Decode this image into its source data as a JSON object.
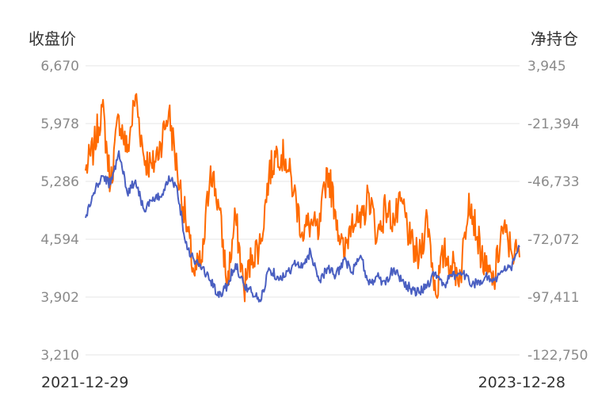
{
  "chart_data": {
    "type": "line",
    "left_axis_title": "收盘价",
    "right_axis_title": "净持仓",
    "left_ticks": [
      "6,670",
      "5,978",
      "5,286",
      "4,594",
      "3,902",
      "3,210"
    ],
    "right_ticks": [
      "3,945",
      "-21,394",
      "-46,733",
      "-72,072",
      "-97,411",
      "-122,750"
    ],
    "ylim_left": [
      3210,
      6670
    ],
    "ylim_right": [
      -122750,
      3945
    ],
    "x_range": [
      "2021-12-29",
      "2023-12-28"
    ],
    "x_tick_labels": [
      "2021-12-29",
      "2023-12-28"
    ],
    "grid": "horizontal",
    "colors": {
      "close": "#4a5fc1",
      "net_position": "#ff6a00",
      "grid": "#e6e6e6"
    },
    "series": [
      {
        "axis": "left",
        "x": [
          "2021-12-29",
          "2022-01-12",
          "2022-01-26",
          "2022-02-09",
          "2022-02-23",
          "2022-03-09",
          "2022-03-23",
          "2022-04-06",
          "2022-04-20",
          "2022-05-04",
          "2022-05-18",
          "2022-06-01",
          "2022-06-15",
          "2022-06-29",
          "2022-07-13",
          "2022-07-27",
          "2022-08-10",
          "2022-08-24",
          "2022-09-07",
          "2022-09-21",
          "2022-10-05",
          "2022-10-19",
          "2022-11-02",
          "2022-11-16",
          "2022-11-30",
          "2022-12-14",
          "2022-12-28",
          "2023-01-11",
          "2023-01-25",
          "2023-02-08",
          "2023-02-22",
          "2023-03-08",
          "2023-03-22",
          "2023-04-05",
          "2023-04-19",
          "2023-05-03",
          "2023-05-17",
          "2023-05-31",
          "2023-06-14",
          "2023-06-28",
          "2023-07-12",
          "2023-07-26",
          "2023-08-09",
          "2023-08-23",
          "2023-09-06",
          "2023-09-20",
          "2023-10-04",
          "2023-10-18",
          "2023-11-01",
          "2023-11-15",
          "2023-11-29",
          "2023-12-13",
          "2023-12-28"
        ],
        "values": [
          4850,
          5150,
          5350,
          5250,
          5650,
          5150,
          5300,
          4950,
          5050,
          5100,
          5350,
          5200,
          4550,
          4350,
          4250,
          4100,
          3900,
          4050,
          4300,
          4050,
          3950,
          3850,
          4250,
          4150,
          4150,
          4300,
          4250,
          4450,
          4100,
          4250,
          4150,
          4350,
          4200,
          4400,
          4050,
          4150,
          4050,
          4250,
          4100,
          4000,
          3950,
          4050,
          4200,
          4050,
          4150,
          4200,
          4100,
          4050,
          4150,
          4100,
          4200,
          4250,
          4500
        ]
      },
      {
        "axis": "right",
        "x": [
          "2021-12-29",
          "2022-01-12",
          "2022-01-26",
          "2022-02-09",
          "2022-02-23",
          "2022-03-09",
          "2022-03-23",
          "2022-04-06",
          "2022-04-20",
          "2022-05-04",
          "2022-05-18",
          "2022-06-01",
          "2022-06-15",
          "2022-06-29",
          "2022-07-13",
          "2022-07-27",
          "2022-08-10",
          "2022-08-24",
          "2022-09-07",
          "2022-09-21",
          "2022-10-05",
          "2022-10-19",
          "2022-11-02",
          "2022-11-16",
          "2022-11-30",
          "2022-12-14",
          "2022-12-28",
          "2023-01-11",
          "2023-01-25",
          "2023-02-08",
          "2023-02-22",
          "2023-03-08",
          "2023-03-22",
          "2023-04-05",
          "2023-04-19",
          "2023-05-03",
          "2023-05-17",
          "2023-05-31",
          "2023-06-14",
          "2023-06-28",
          "2023-07-12",
          "2023-07-26",
          "2023-08-09",
          "2023-08-23",
          "2023-09-06",
          "2023-09-20",
          "2023-10-04",
          "2023-10-18",
          "2023-11-01",
          "2023-11-15",
          "2023-11-29",
          "2023-12-13",
          "2023-12-28"
        ],
        "values": [
          -42000,
          -32000,
          -14000,
          -48000,
          -18000,
          -34000,
          -9000,
          -36000,
          -41000,
          -30000,
          -16000,
          -42000,
          -63000,
          -87000,
          -82000,
          -40000,
          -58000,
          -92000,
          -62000,
          -94000,
          -79000,
          -74000,
          -44000,
          -33000,
          -37000,
          -51000,
          -69000,
          -65000,
          -70000,
          -41000,
          -60000,
          -80000,
          -61000,
          -67000,
          -52000,
          -71000,
          -58000,
          -64000,
          -56000,
          -74000,
          -81000,
          -62000,
          -96000,
          -78000,
          -84000,
          -88000,
          -52000,
          -71000,
          -86000,
          -91000,
          -67000,
          -76000,
          -80000
        ]
      }
    ]
  }
}
